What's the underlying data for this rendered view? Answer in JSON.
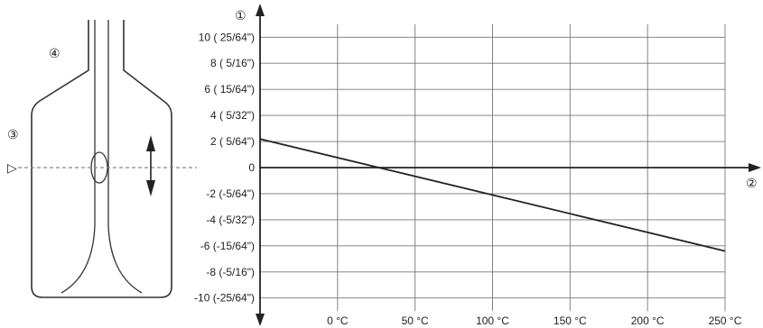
{
  "markers": {
    "m1": "①",
    "m2": "②",
    "m3": "③",
    "m4": "④",
    "level": "▷"
  },
  "chart_data": {
    "type": "line",
    "x": [
      -50,
      250
    ],
    "xlim": [
      -50,
      250
    ],
    "ylim": [
      -11,
      11
    ],
    "x_ticks": [
      0,
      50,
      100,
      150,
      200,
      250
    ],
    "x_tick_labels": [
      "0 °C",
      "50 °C",
      "100 °C",
      "150 °C",
      "200 °C",
      "250 °C"
    ],
    "y_ticks": [
      10,
      8,
      6,
      4,
      2,
      0,
      -2,
      -4,
      -6,
      -8,
      -10
    ],
    "y_tick_labels": [
      "10 ( 25/64\")",
      "8 ( 5/16\")",
      "6 ( 15/64\")",
      "4 ( 5/32\")",
      "2 ( 5/64\")",
      "0",
      "-2 (-5/64\")",
      "-4 (-5/32\")",
      "-6 (-15/64\")",
      "-8 (-5/16\")",
      "-10 (-25/64\")"
    ],
    "series": [
      {
        "x": [
          -50,
          250
        ],
        "values": [
          2.2,
          -6.4
        ]
      }
    ],
    "grid": true,
    "colors": {
      "line": "#222222",
      "grid": "#777777"
    }
  }
}
